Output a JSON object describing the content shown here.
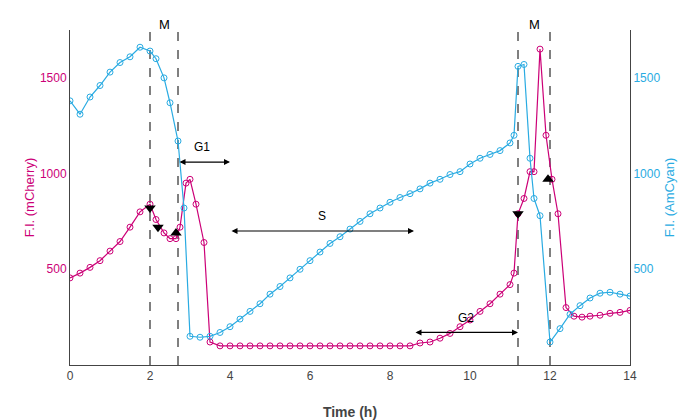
{
  "chart_data": {
    "type": "line",
    "xlabel": "Time (h)",
    "ylabel": "F.I. (mCherry)",
    "y2label": "F.I. (AmCyan)",
    "xlim": [
      0,
      14
    ],
    "xticks": [
      0,
      2,
      4,
      6,
      8,
      10,
      12,
      14
    ],
    "ylim": [
      0,
      1750
    ],
    "yticks": [
      500,
      1000,
      1500
    ],
    "y2lim": [
      0,
      1750
    ],
    "y2ticks": [
      500,
      1000,
      1500
    ],
    "grid": false,
    "series": [
      {
        "color": "#CC0077",
        "marker": "circle-open",
        "axis": "y",
        "x": [
          0.0,
          0.25,
          0.5,
          0.75,
          1.0,
          1.25,
          1.5,
          1.75,
          2.0,
          2.15,
          2.35,
          2.5,
          2.65,
          2.75,
          2.9,
          3.0,
          3.15,
          3.35,
          3.5,
          3.75,
          4.0,
          4.25,
          4.5,
          4.75,
          5.0,
          5.25,
          5.5,
          5.75,
          6.0,
          6.25,
          6.5,
          6.75,
          7.0,
          7.25,
          7.5,
          7.75,
          8.0,
          8.25,
          8.5,
          8.75,
          9.0,
          9.25,
          9.5,
          9.75,
          10.0,
          10.25,
          10.5,
          10.75,
          11.0,
          11.1,
          11.2,
          11.35,
          11.5,
          11.6,
          11.75,
          11.9,
          12.05,
          12.2,
          12.4,
          12.6,
          12.8,
          13.0,
          13.25,
          13.5,
          13.75,
          14.0
        ],
        "values": [
          455,
          480,
          510,
          545,
          595,
          645,
          720,
          800,
          840,
          760,
          690,
          660,
          660,
          720,
          950,
          970,
          840,
          640,
          120,
          100,
          100,
          100,
          100,
          100,
          100,
          100,
          100,
          100,
          100,
          100,
          100,
          100,
          100,
          100,
          100,
          100,
          100,
          100,
          100,
          115,
          120,
          140,
          165,
          200,
          235,
          280,
          320,
          370,
          420,
          480,
          790,
          870,
          1010,
          1010,
          1650,
          1200,
          970,
          790,
          300,
          255,
          250,
          255,
          260,
          270,
          275,
          285
        ]
      },
      {
        "color": "#29ABE2",
        "marker": "circle-open",
        "axis": "y2",
        "x": [
          0.0,
          0.25,
          0.5,
          0.75,
          1.0,
          1.25,
          1.5,
          1.75,
          2.0,
          2.15,
          2.35,
          2.5,
          2.7,
          2.85,
          3.0,
          3.25,
          3.5,
          3.75,
          4.0,
          4.25,
          4.5,
          4.75,
          5.0,
          5.25,
          5.5,
          5.75,
          6.0,
          6.25,
          6.5,
          6.75,
          7.0,
          7.25,
          7.5,
          7.75,
          8.0,
          8.25,
          8.5,
          8.75,
          9.0,
          9.25,
          9.5,
          9.75,
          10.0,
          10.25,
          10.5,
          10.75,
          11.0,
          11.1,
          11.2,
          11.35,
          11.5,
          11.6,
          11.75,
          12.0,
          12.25,
          12.5,
          12.75,
          13.0,
          13.25,
          13.5,
          13.75,
          14.0
        ],
        "values": [
          1380,
          1310,
          1400,
          1460,
          1530,
          1580,
          1610,
          1660,
          1640,
          1600,
          1500,
          1370,
          1170,
          820,
          150,
          145,
          150,
          170,
          200,
          240,
          280,
          320,
          370,
          410,
          455,
          500,
          545,
          590,
          635,
          670,
          710,
          750,
          790,
          820,
          850,
          875,
          895,
          920,
          950,
          970,
          995,
          1010,
          1050,
          1080,
          1100,
          1120,
          1160,
          1200,
          1560,
          1570,
          1080,
          870,
          780,
          120,
          190,
          265,
          310,
          350,
          375,
          380,
          370,
          360
        ]
      }
    ],
    "vlines": {
      "x": [
        2.0,
        2.7,
        11.2,
        12.0
      ],
      "color": "#000000",
      "line_style": "dashed"
    },
    "annotations": [
      {
        "text": "M",
        "x": 2.35,
        "y": 1730
      },
      {
        "text": "M",
        "x": 11.6,
        "y": 1730
      }
    ],
    "arrows": [
      {
        "text": "G1",
        "x_start": 2.7,
        "x_end": 4.0,
        "y": 1060,
        "text_x": 3.3,
        "text_y": 1090
      },
      {
        "text": "S",
        "x_start": 4.0,
        "x_end": 8.6,
        "y": 700,
        "text_x": 6.3,
        "text_y": 730
      },
      {
        "text": "G2",
        "x_start": 8.6,
        "x_end": 11.2,
        "y": 170,
        "text_x": 9.9,
        "text_y": 200
      }
    ],
    "markers": [
      {
        "x": 2.0,
        "y": 820,
        "marker": "triangle-down",
        "color": "#000000"
      },
      {
        "x": 2.2,
        "y": 720,
        "marker": "triangle-down",
        "color": "#000000"
      },
      {
        "x": 2.65,
        "y": 690,
        "marker": "triangle-up",
        "color": "#000000"
      },
      {
        "x": 11.2,
        "y": 790,
        "marker": "triangle-down",
        "color": "#000000"
      },
      {
        "x": 11.95,
        "y": 970,
        "marker": "triangle-up",
        "color": "#000000"
      }
    ]
  }
}
